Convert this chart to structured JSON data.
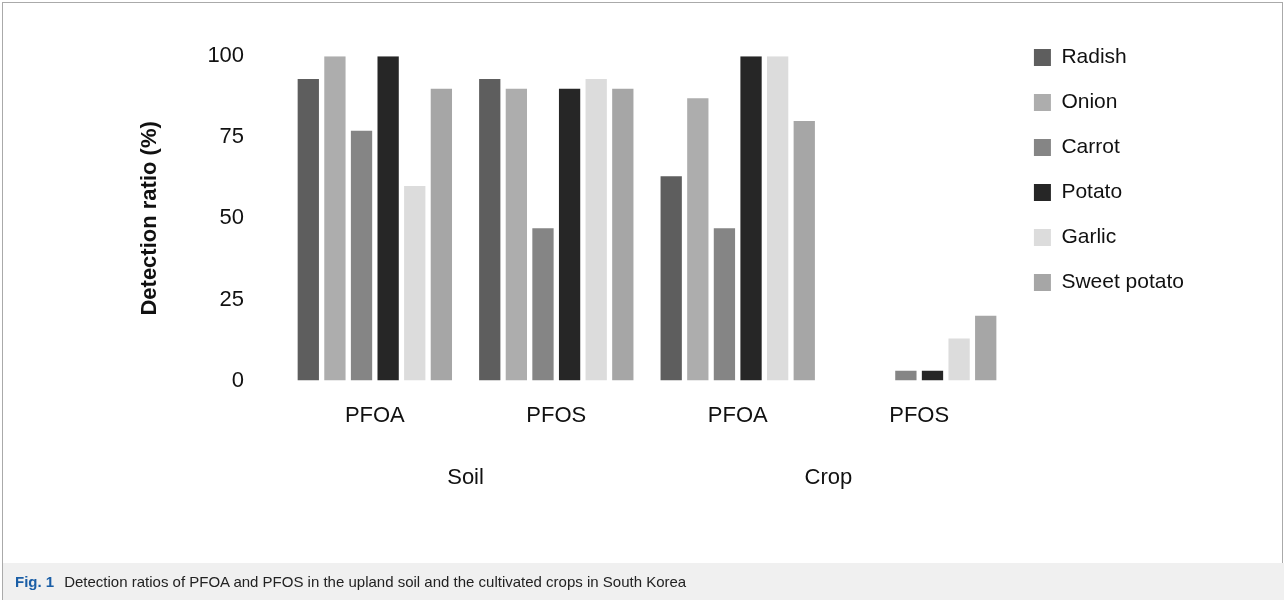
{
  "chart_data": {
    "type": "bar",
    "ylabel": "Detection ratio (%)",
    "categories": [
      "PFOA",
      "PFOS",
      "PFOA",
      "PFOS"
    ],
    "series": [
      {
        "name": "Radish",
        "color": "#5e5e5e",
        "values": [
          93,
          93,
          63,
          0
        ]
      },
      {
        "name": "Onion",
        "color": "#adadad",
        "values": [
          100,
          90,
          87,
          0
        ]
      },
      {
        "name": "Carrot",
        "color": "#858585",
        "values": [
          77,
          47,
          47,
          3
        ]
      },
      {
        "name": "Potato",
        "color": "#262626",
        "values": [
          100,
          90,
          100,
          3
        ]
      },
      {
        "name": "Garlic",
        "color": "#dcdcdc",
        "values": [
          60,
          93,
          100,
          13
        ]
      },
      {
        "name": "Sweet potato",
        "color": "#a6a6a6",
        "values": [
          90,
          90,
          80,
          20
        ]
      }
    ],
    "ylim": [
      0,
      100
    ],
    "yticks": [
      0,
      25,
      50,
      75,
      100
    ],
    "grid": false,
    "legend": "top right",
    "annotations": [
      "Soil",
      "Crop",
      "Fig. 1",
      "Detection ratios of PFOA and PFOS in the upland soil and the cultivated crops in South Korea"
    ]
  }
}
